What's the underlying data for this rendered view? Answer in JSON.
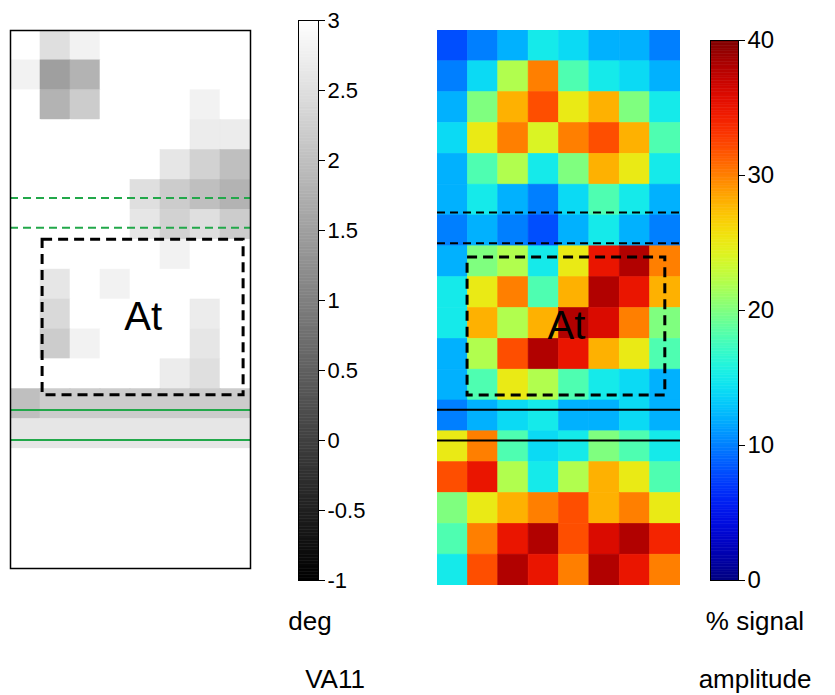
{
  "chart_data": [
    {
      "type": "heatmap",
      "color": "gray",
      "tick_labels": false,
      "colorbar_label": "deg",
      "caption": "VA11",
      "colorbar": {
        "lim": [
          -1,
          3
        ],
        "ticks": [
          3,
          2.5,
          2,
          1.5,
          1,
          0.5,
          0,
          -0.5,
          -1
        ]
      },
      "cells": [
        [
          3,
          2.5,
          2.8,
          3,
          3,
          3,
          3,
          3
        ],
        [
          2.8,
          1.5,
          1.8,
          3,
          3,
          3,
          3,
          3
        ],
        [
          3,
          1.8,
          2.2,
          3,
          3,
          3,
          2.8,
          3
        ],
        [
          3,
          3,
          3,
          3,
          3,
          3,
          2.7,
          2.7
        ],
        [
          3,
          3,
          3,
          3,
          3,
          2.6,
          2.3,
          2.0
        ],
        [
          3,
          3,
          3,
          3,
          2.5,
          2.2,
          2.0,
          1.8
        ],
        [
          3,
          3,
          3,
          3,
          2.6,
          2.3,
          2.5,
          2.2
        ],
        [
          3,
          3,
          3,
          3,
          3,
          2.8,
          3,
          3
        ],
        [
          3,
          2.6,
          3,
          2.8,
          3,
          3,
          3,
          3
        ],
        [
          3,
          2.4,
          3,
          3,
          3,
          3,
          2.7,
          3
        ],
        [
          3,
          2.2,
          2.8,
          3,
          3,
          3,
          2.6,
          3
        ],
        [
          3,
          3,
          3,
          3,
          3,
          2.7,
          2.5,
          3
        ],
        [
          2.0,
          2.2,
          2.2,
          2.2,
          2.2,
          2.2,
          2.2,
          2.2
        ],
        [
          2.6,
          2.6,
          2.6,
          2.6,
          2.6,
          2.6,
          2.6,
          2.6
        ],
        [
          3,
          3,
          3,
          3,
          3,
          3,
          3,
          3
        ],
        [
          3,
          3,
          3,
          3,
          3,
          3,
          3,
          3
        ],
        [
          3,
          3,
          3,
          3,
          3,
          3,
          3,
          3
        ],
        [
          3,
          3,
          3,
          3,
          3,
          3,
          3,
          3
        ]
      ],
      "lines": [
        {
          "y": 5.6,
          "line_style": "dashed",
          "color": "#22a84a"
        },
        {
          "y": 6.6,
          "line_style": "dashed",
          "color": "#22a84a"
        },
        {
          "y": 12.7,
          "line_style": "solid",
          "color": "#22a84a"
        },
        {
          "y": 13.7,
          "line_style": "solid",
          "color": "#22a84a"
        }
      ],
      "annotations": [
        {
          "text": "At",
          "x": [
            1.07,
            7.77
          ],
          "y": [
            7.0,
            12.2
          ]
        }
      ]
    },
    {
      "type": "heatmap",
      "color": "jet",
      "tick_labels": false,
      "colorbar_label": "% signal",
      "caption": "amplitude",
      "colorbar": {
        "lim": [
          0,
          40
        ],
        "ticks": [
          0,
          10,
          20,
          30,
          40
        ]
      },
      "cells": [
        [
          8,
          10,
          12,
          15,
          14,
          12,
          12,
          10
        ],
        [
          10,
          14,
          22,
          30,
          18,
          15,
          14,
          12
        ],
        [
          12,
          20,
          28,
          32,
          25,
          28,
          20,
          15
        ],
        [
          14,
          25,
          30,
          24,
          30,
          32,
          28,
          18
        ],
        [
          12,
          18,
          22,
          15,
          20,
          28,
          25,
          15
        ],
        [
          12,
          15,
          12,
          10,
          14,
          18,
          15,
          12
        ],
        [
          10,
          12,
          10,
          8,
          12,
          15,
          12,
          10
        ],
        [
          12,
          20,
          22,
          15,
          25,
          35,
          38,
          30
        ],
        [
          15,
          25,
          30,
          18,
          28,
          38,
          35,
          28
        ],
        [
          15,
          28,
          22,
          28,
          38,
          36,
          30,
          20
        ],
        [
          12,
          22,
          32,
          38,
          35,
          28,
          25,
          18
        ],
        [
          12,
          18,
          25,
          22,
          18,
          15,
          14,
          12
        ],
        [
          10,
          12,
          14,
          15,
          12,
          12,
          14,
          12
        ],
        [
          25,
          30,
          18,
          14,
          15,
          20,
          18,
          15
        ],
        [
          32,
          35,
          22,
          15,
          22,
          28,
          25,
          18
        ],
        [
          20,
          25,
          28,
          30,
          32,
          28,
          30,
          25
        ],
        [
          18,
          30,
          35,
          38,
          32,
          36,
          38,
          34
        ],
        [
          15,
          32,
          38,
          35,
          30,
          38,
          35,
          30
        ]
      ],
      "lines": [
        {
          "y": 5.9,
          "line_style": "dashed",
          "color": "#000000"
        },
        {
          "y": 6.9,
          "line_style": "dashed",
          "color": "#000000"
        },
        {
          "y": 12.3,
          "line_style": "solid",
          "color": "#000000"
        },
        {
          "y": 13.3,
          "line_style": "solid",
          "color": "#000000"
        }
      ],
      "annotations": [
        {
          "text": "At",
          "x": [
            0.99,
            7.5
          ],
          "y": [
            7.36,
            11.84
          ]
        }
      ]
    }
  ]
}
